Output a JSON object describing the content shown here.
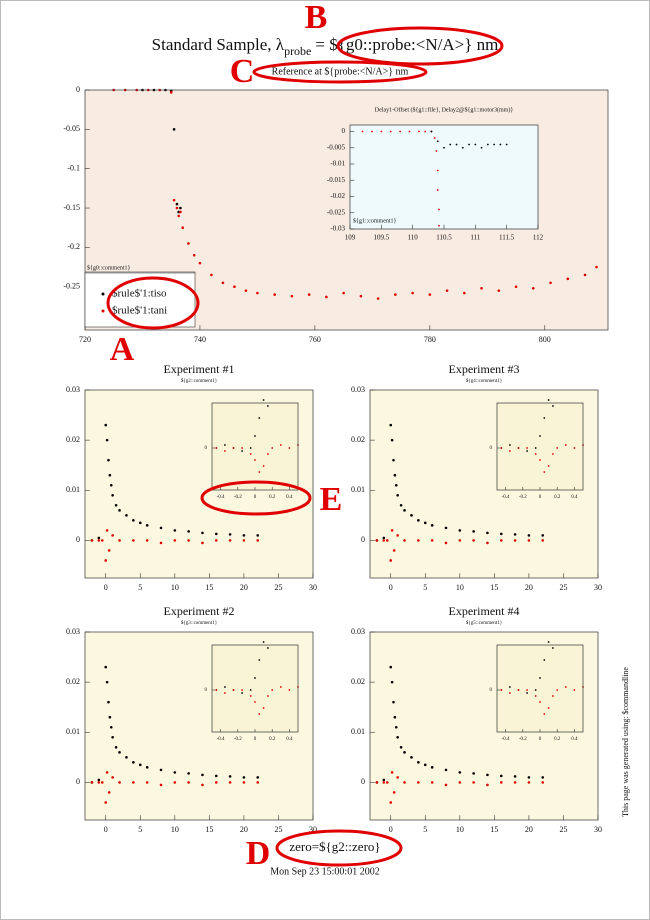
{
  "page": {
    "footer_zero": "zero=${g2::zero}",
    "date": "Mon Sep 23 15:00:01 2002",
    "side_note": "This page was generated using: $commandline",
    "annotations": [
      "A",
      "B",
      "C",
      "D",
      "E"
    ]
  },
  "chart_data": [
    {
      "type": "scatter",
      "title": "Standard Sample, λ",
      "title_subscript": "probe",
      "title_rest": "= ${g0::probe:<N/A>} nm",
      "subtitle": "Reference at ${probe:<N/A>} nm",
      "xlim": [
        720,
        811
      ],
      "xticks": [
        720,
        740,
        760,
        780,
        800
      ],
      "ylim": [
        -0.305,
        0
      ],
      "yticks": [
        0,
        -0.05,
        -0.1,
        -0.15,
        -0.2,
        -0.25
      ],
      "legend_title": "${g0::comment1}",
      "legend": "lower left",
      "series": [
        {
          "name": "$rule$'1:tiso",
          "color": "#000000",
          "x": [
            730,
            732,
            734,
            735,
            735.5,
            736,
            736.3,
            736.6
          ],
          "values": [
            0,
            0,
            0,
            -0.001,
            -0.05,
            -0.145,
            -0.155,
            -0.15
          ]
        },
        {
          "name": "$rule$'1:tani",
          "color": "#e00000",
          "x": [
            725,
            727,
            729,
            731,
            733,
            735,
            735.5,
            736,
            736.3,
            736.6,
            737,
            738,
            739,
            740,
            742,
            744,
            746,
            748,
            750,
            753,
            756,
            759,
            762,
            765,
            768,
            771,
            774,
            777,
            780,
            783,
            786,
            789,
            792,
            795,
            798,
            801,
            804,
            807,
            809
          ],
          "values": [
            0,
            0,
            0,
            0,
            0,
            -0.003,
            -0.14,
            -0.15,
            -0.16,
            -0.155,
            -0.175,
            -0.195,
            -0.21,
            -0.22,
            -0.235,
            -0.245,
            -0.25,
            -0.255,
            -0.258,
            -0.26,
            -0.262,
            -0.26,
            -0.263,
            -0.258,
            -0.262,
            -0.265,
            -0.26,
            -0.258,
            -0.26,
            -0.255,
            -0.258,
            -0.252,
            -0.255,
            -0.25,
            -0.252,
            -0.245,
            -0.24,
            -0.235,
            -0.225
          ]
        }
      ]
    },
    {
      "type": "scatter",
      "title": "Delay1-Offset (${g1::file}, Delay2@${g1::motor3(mm)}",
      "label": "${g1::comment1}",
      "xlim": [
        109,
        112
      ],
      "xticks": [
        109,
        109.5,
        110,
        110.5,
        111,
        111.5,
        112
      ],
      "ylim": [
        -0.03,
        0.002
      ],
      "yticks": [
        0,
        -0.005,
        -0.01,
        -0.015,
        -0.02,
        -0.025,
        -0.03
      ],
      "series": [
        {
          "color": "#e00000",
          "x": [
            109.2,
            109.35,
            109.5,
            109.65,
            109.8,
            109.95,
            110.1,
            110.2,
            110.3,
            110.35,
            110.38,
            110.4,
            110.4,
            110.42,
            110.42
          ],
          "values": [
            0,
            0,
            0,
            0,
            0,
            0,
            0,
            0,
            0,
            -0.002,
            -0.006,
            -0.012,
            -0.018,
            -0.024,
            -0.029
          ]
        },
        {
          "color": "#000000",
          "x": [
            110.3,
            110.4,
            110.5,
            110.6,
            110.7,
            110.8,
            110.9,
            111,
            111.1,
            111.2,
            111.3,
            111.4,
            111.5
          ],
          "values": [
            0,
            -0.003,
            -0.005,
            -0.004,
            -0.004,
            -0.005,
            -0.004,
            -0.004,
            -0.005,
            -0.004,
            -0.004,
            -0.004,
            -0.004
          ]
        }
      ]
    },
    {
      "type": "scatter",
      "title": "Experiment #1",
      "subtitle": "${g2::comment1}",
      "xlim": [
        -3,
        30
      ],
      "xticks": [
        0,
        5,
        10,
        15,
        20,
        25,
        30
      ],
      "ylim": [
        -0.0075,
        0.03
      ],
      "yticks": [
        0,
        0.01,
        0.02,
        0.03
      ],
      "series": [
        {
          "color": "#000000",
          "x": [
            -2,
            -1,
            0,
            0.2,
            0.4,
            0.6,
            0.8,
            1,
            1.5,
            2,
            3,
            4,
            5,
            6,
            8,
            10,
            12,
            14,
            16,
            18,
            20,
            22
          ],
          "values": [
            0,
            0.0005,
            0.023,
            0.02,
            0.016,
            0.013,
            0.011,
            0.009,
            0.007,
            0.006,
            0.005,
            0.004,
            0.0035,
            0.003,
            0.0025,
            0.002,
            0.0018,
            0.0015,
            0.0013,
            0.0012,
            0.001,
            0.001
          ]
        },
        {
          "color": "#e00000",
          "x": [
            -2,
            -1,
            -0.5,
            0,
            0.2,
            0.5,
            1,
            2,
            4,
            6,
            8,
            10,
            12,
            14,
            16,
            18,
            20,
            22
          ],
          "values": [
            0,
            0,
            0,
            -0.004,
            0.002,
            -0.002,
            0.001,
            0,
            0,
            0,
            -0.0005,
            0,
            0,
            -0.0005,
            0,
            0,
            0,
            0
          ]
        }
      ]
    },
    {
      "type": "scatter",
      "xlim": [
        -0.5,
        0.5
      ],
      "xticks": [
        -0.4,
        -0.2,
        0,
        0.2,
        0.4
      ],
      "ylim": [
        -0.014,
        0.015
      ],
      "yticks": [
        0
      ],
      "series": [
        {
          "color": "#000000",
          "x": [
            -0.45,
            -0.35,
            -0.25,
            -0.15,
            -0.05,
            0,
            0.05,
            0.1,
            0.15
          ],
          "values": [
            0,
            0.001,
            0,
            -0.001,
            0,
            0.004,
            0.01,
            0.016,
            0.014
          ]
        },
        {
          "color": "#e00000",
          "x": [
            -0.45,
            -0.35,
            -0.25,
            -0.15,
            -0.05,
            0,
            0.05,
            0.1,
            0.15,
            0.2,
            0.3,
            0.4,
            0.5
          ],
          "values": [
            0,
            -0.001,
            0,
            0,
            -0.002,
            -0.004,
            -0.008,
            -0.006,
            -0.002,
            0,
            0.001,
            0,
            0.001
          ]
        }
      ]
    },
    {
      "type": "scatter",
      "title": "Experiment #3",
      "subtitle": "${g4::comment1}",
      "xlim": [
        -3,
        30
      ],
      "xticks": [
        0,
        5,
        10,
        15,
        20,
        25,
        30
      ],
      "ylim": [
        -0.0075,
        0.03
      ],
      "yticks": [
        0,
        0.01,
        0.02,
        0.03
      ],
      "series": [
        {
          "color": "#000000",
          "x": [
            -2,
            -1,
            0,
            0.2,
            0.4,
            0.6,
            0.8,
            1,
            1.5,
            2,
            3,
            4,
            5,
            6,
            8,
            10,
            12,
            14,
            16,
            18,
            20,
            22
          ],
          "values": [
            0,
            0.0005,
            0.023,
            0.02,
            0.016,
            0.013,
            0.011,
            0.009,
            0.007,
            0.006,
            0.005,
            0.004,
            0.0035,
            0.003,
            0.0025,
            0.002,
            0.0018,
            0.0015,
            0.0013,
            0.0012,
            0.001,
            0.001
          ]
        },
        {
          "color": "#e00000",
          "x": [
            -2,
            -1,
            -0.5,
            0,
            0.2,
            0.5,
            1,
            2,
            4,
            6,
            8,
            10,
            12,
            14,
            16,
            18,
            20,
            22
          ],
          "values": [
            0,
            0,
            0,
            -0.004,
            0.002,
            -0.002,
            0.001,
            0,
            0,
            0,
            -0.0005,
            0,
            0,
            -0.0005,
            0,
            0,
            0,
            0
          ]
        }
      ]
    },
    {
      "type": "scatter",
      "xlim": [
        -0.5,
        0.5
      ],
      "xticks": [
        -0.4,
        -0.2,
        0,
        0.2,
        0.4
      ],
      "ylim": [
        -0.014,
        0.015
      ],
      "yticks": [
        0
      ],
      "series": [
        {
          "color": "#000000",
          "x": [
            -0.45,
            -0.35,
            -0.25,
            -0.15,
            -0.05,
            0,
            0.05,
            0.1,
            0.15
          ],
          "values": [
            0,
            0.001,
            0,
            -0.001,
            0,
            0.004,
            0.01,
            0.016,
            0.014
          ]
        },
        {
          "color": "#e00000",
          "x": [
            -0.45,
            -0.35,
            -0.25,
            -0.15,
            -0.05,
            0,
            0.05,
            0.1,
            0.15,
            0.2,
            0.3,
            0.4,
            0.5
          ],
          "values": [
            0,
            -0.001,
            0,
            0,
            -0.002,
            -0.004,
            -0.008,
            -0.006,
            -0.002,
            0,
            0.001,
            0,
            0.001
          ]
        }
      ]
    },
    {
      "type": "scatter",
      "title": "Experiment #2",
      "subtitle": "${g3::comment1}",
      "xlim": [
        -3,
        30
      ],
      "xticks": [
        0,
        5,
        10,
        15,
        20,
        25,
        30
      ],
      "ylim": [
        -0.0075,
        0.03
      ],
      "yticks": [
        0,
        0.01,
        0.02,
        0.03
      ],
      "series": [
        {
          "color": "#000000",
          "x": [
            -2,
            -1,
            0,
            0.2,
            0.4,
            0.6,
            0.8,
            1,
            1.5,
            2,
            3,
            4,
            5,
            6,
            8,
            10,
            12,
            14,
            16,
            18,
            20,
            22
          ],
          "values": [
            0,
            0.0005,
            0.023,
            0.02,
            0.016,
            0.013,
            0.011,
            0.009,
            0.007,
            0.006,
            0.005,
            0.004,
            0.0035,
            0.003,
            0.0025,
            0.002,
            0.0018,
            0.0015,
            0.0013,
            0.0012,
            0.001,
            0.001
          ]
        },
        {
          "color": "#e00000",
          "x": [
            -2,
            -1,
            -0.5,
            0,
            0.2,
            0.5,
            1,
            2,
            4,
            6,
            8,
            10,
            12,
            14,
            16,
            18,
            20,
            22
          ],
          "values": [
            0,
            0,
            0,
            -0.004,
            0.002,
            -0.002,
            0.001,
            0,
            0,
            0,
            -0.0005,
            0,
            0,
            -0.0005,
            0,
            0,
            0,
            0
          ]
        }
      ]
    },
    {
      "type": "scatter",
      "xlim": [
        -0.5,
        0.5
      ],
      "xticks": [
        -0.4,
        -0.2,
        0,
        0.2,
        0.4
      ],
      "ylim": [
        -0.014,
        0.015
      ],
      "yticks": [
        0
      ],
      "series": [
        {
          "color": "#000000",
          "x": [
            -0.45,
            -0.35,
            -0.25,
            -0.15,
            -0.05,
            0,
            0.05,
            0.1,
            0.15
          ],
          "values": [
            0,
            0.001,
            0,
            -0.001,
            0,
            0.004,
            0.01,
            0.016,
            0.014
          ]
        },
        {
          "color": "#e00000",
          "x": [
            -0.45,
            -0.35,
            -0.25,
            -0.15,
            -0.05,
            0,
            0.05,
            0.1,
            0.15,
            0.2,
            0.3,
            0.4,
            0.5
          ],
          "values": [
            0,
            -0.001,
            0,
            0,
            -0.002,
            -0.004,
            -0.008,
            -0.006,
            -0.002,
            0,
            0.001,
            0,
            0.001
          ]
        }
      ]
    },
    {
      "type": "scatter",
      "title": "Experiment #4",
      "subtitle": "${g5::comment1}",
      "xlim": [
        -3,
        30
      ],
      "xticks": [
        0,
        5,
        10,
        15,
        20,
        25,
        30
      ],
      "ylim": [
        -0.0075,
        0.03
      ],
      "yticks": [
        0,
        0.01,
        0.02,
        0.03
      ],
      "series": [
        {
          "color": "#000000",
          "x": [
            -2,
            -1,
            0,
            0.2,
            0.4,
            0.6,
            0.8,
            1,
            1.5,
            2,
            3,
            4,
            5,
            6,
            8,
            10,
            12,
            14,
            16,
            18,
            20,
            22
          ],
          "values": [
            0,
            0.0005,
            0.023,
            0.02,
            0.016,
            0.013,
            0.011,
            0.009,
            0.007,
            0.006,
            0.005,
            0.004,
            0.0035,
            0.003,
            0.0025,
            0.002,
            0.0018,
            0.0015,
            0.0013,
            0.0012,
            0.001,
            0.001
          ]
        },
        {
          "color": "#e00000",
          "x": [
            -2,
            -1,
            -0.5,
            0,
            0.2,
            0.5,
            1,
            2,
            4,
            6,
            8,
            10,
            12,
            14,
            16,
            18,
            20,
            22
          ],
          "values": [
            0,
            0,
            0,
            -0.004,
            0.002,
            -0.002,
            0.001,
            0,
            0,
            0,
            -0.0005,
            0,
            0,
            -0.0005,
            0,
            0,
            0,
            0
          ]
        }
      ]
    },
    {
      "type": "scatter",
      "xlim": [
        -0.5,
        0.5
      ],
      "xticks": [
        -0.4,
        -0.2,
        0,
        0.2,
        0.4
      ],
      "ylim": [
        -0.014,
        0.015
      ],
      "yticks": [
        0
      ],
      "series": [
        {
          "color": "#000000",
          "x": [
            -0.45,
            -0.35,
            -0.25,
            -0.15,
            -0.05,
            0,
            0.05,
            0.1,
            0.15
          ],
          "values": [
            0,
            0.001,
            0,
            -0.001,
            0,
            0.004,
            0.01,
            0.016,
            0.014
          ]
        },
        {
          "color": "#e00000",
          "x": [
            -0.45,
            -0.35,
            -0.25,
            -0.15,
            -0.05,
            0,
            0.05,
            0.1,
            0.15,
            0.2,
            0.3,
            0.4,
            0.5
          ],
          "values": [
            0,
            -0.001,
            0,
            0,
            -0.002,
            -0.004,
            -0.008,
            -0.006,
            -0.002,
            0,
            0.001,
            0,
            0.001
          ]
        }
      ]
    }
  ]
}
